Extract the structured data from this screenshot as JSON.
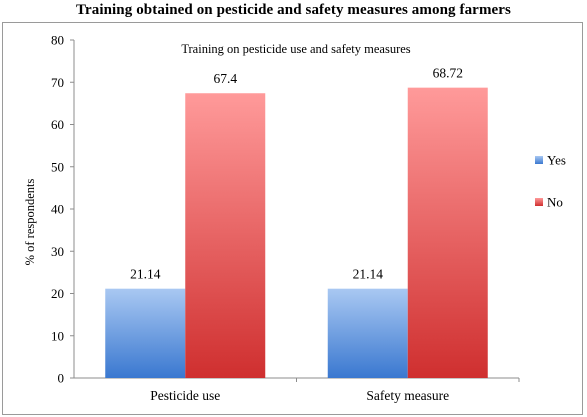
{
  "chart_data": {
    "type": "bar",
    "title": "Training obtained on pesticide and safety measures among farmers",
    "subtitle": "Training on pesticide use and safety measures",
    "xlabel": "",
    "ylabel": "% of respondents",
    "ylim": [
      0,
      80
    ],
    "yticks": [
      "0",
      "10",
      "20",
      "30",
      "40",
      "50",
      "60",
      "70",
      "80"
    ],
    "categories": [
      "Pesticide use",
      "Safety measure"
    ],
    "series": [
      {
        "name": "Yes",
        "values": [
          21.14,
          21.14
        ],
        "labels": [
          "21.14",
          "21.14"
        ],
        "color": "#4f86d6"
      },
      {
        "name": "No",
        "values": [
          67.4,
          68.72
        ],
        "labels": [
          "67.4",
          "68.72"
        ],
        "color": "#d94545"
      }
    ],
    "grid": false,
    "legend": "right"
  }
}
